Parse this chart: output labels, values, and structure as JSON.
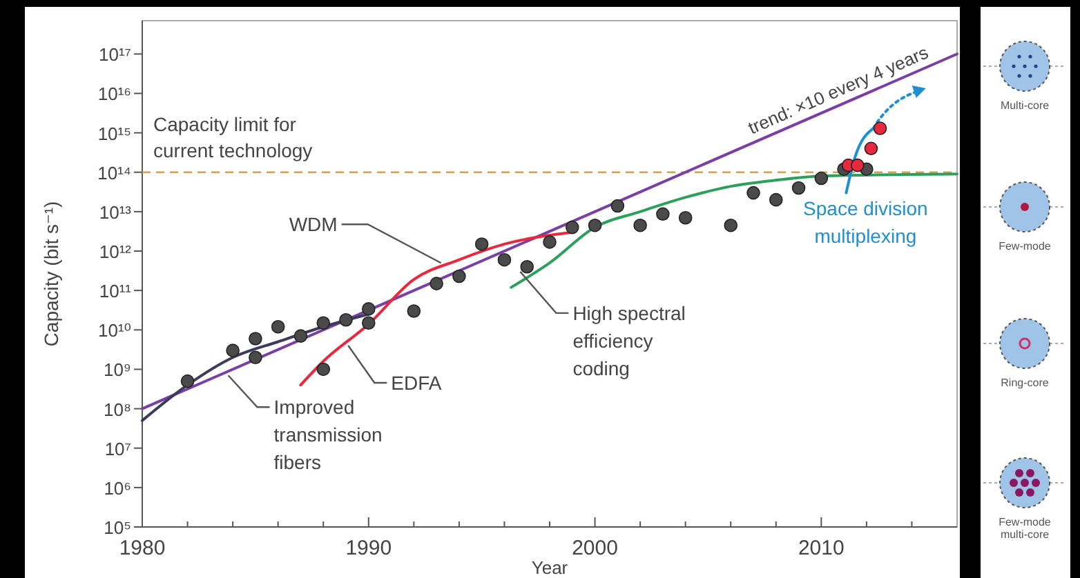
{
  "chart_data": {
    "type": "line",
    "xlabel": "Year",
    "ylabel": "Capacity (bit s⁻¹)",
    "log": true,
    "xlim": [
      1980,
      2016
    ],
    "ylim": [
      100000.0,
      7e+17
    ],
    "xticks": [
      1980,
      {
        "value": 1982,
        "label": null
      },
      {
        "value": 1984,
        "label": null
      },
      {
        "value": 1986,
        "label": null
      },
      {
        "value": 1988,
        "label": null
      },
      1990,
      {
        "value": 1992,
        "label": null
      },
      {
        "value": 1994,
        "label": null
      },
      {
        "value": 1996,
        "label": null
      },
      {
        "value": 1998,
        "label": null
      },
      2000,
      {
        "value": 2002,
        "label": null
      },
      {
        "value": 2004,
        "label": null
      },
      {
        "value": 2006,
        "label": null
      },
      {
        "value": 2008,
        "label": null
      },
      2010,
      {
        "value": 2012,
        "label": null
      },
      {
        "value": 2014,
        "label": null
      }
    ],
    "yticks": [
      {
        "value": 100000.0,
        "label": "10⁵"
      },
      {
        "value": 1000000.0,
        "label": "10⁶"
      },
      {
        "value": 10000000.0,
        "label": "10⁷"
      },
      {
        "value": 100000000.0,
        "label": "10⁸"
      },
      {
        "value": 1000000000.0,
        "label": "10⁹"
      },
      {
        "value": 10000000000.0,
        "label": "10¹⁰"
      },
      {
        "value": 100000000000.0,
        "label": "10¹¹"
      },
      {
        "value": 1000000000000.0,
        "label": "10¹²"
      },
      {
        "value": 10000000000000.0,
        "label": "10¹³"
      },
      {
        "value": 100000000000000.0,
        "label": "10¹⁴"
      },
      {
        "value": 1000000000000000.0,
        "label": "10¹⁵"
      },
      {
        "value": 1e+16,
        "label": "10¹⁶"
      },
      {
        "value": 1e+17,
        "label": "10¹⁷"
      }
    ],
    "grid": false,
    "ref_lines": [
      {
        "axis": "y",
        "value": 100000000000000.0,
        "label": "Capacity limit for current technology",
        "color": "#c9a45a",
        "line_style": "dashed"
      }
    ],
    "series": [
      {
        "color": "#7a3fa5",
        "x": [
          1980,
          2016
        ],
        "values": [
          100000000.0,
          1e+17
        ]
      },
      {
        "color": "#3d3a5c",
        "x": [
          1980,
          1982,
          1984,
          1986,
          1988,
          1990
        ],
        "values": [
          50000000.0,
          400000000.0,
          2000000000.0,
          5000000000.0,
          12000000000.0,
          25000000000.0
        ]
      },
      {
        "color": "#e8283c",
        "x": [
          1987,
          1988,
          1990,
          1992,
          1994,
          1996,
          1999
        ],
        "values": [
          400000000.0,
          1600000000.0,
          14000000000.0,
          190000000000.0,
          600000000000.0,
          1500000000000.0,
          3000000000000.0
        ]
      },
      {
        "color": "#2ca05a",
        "x": [
          1996.3,
          1998,
          2000,
          2002,
          2004,
          2006,
          2008,
          2010,
          2016
        ],
        "values": [
          120000000000.0,
          500000000000.0,
          4000000000000.0,
          10000000000000.0,
          23000000000000.0,
          44000000000000.0,
          63000000000000.0,
          80000000000000.0,
          90000000000000.0
        ]
      },
      {
        "name": "Space division multiplexing",
        "color": "#1e8fd0",
        "x": [
          2011.1,
          2011.5,
          2012.3
        ],
        "values": [
          30000000000000.0,
          250000000000000.0,
          1300000000000000.0
        ]
      },
      {
        "type": "scatter",
        "color": "#4a4a4a",
        "marker": "circle",
        "x": [
          1982,
          1984,
          1985,
          1985,
          1986,
          1987,
          1988,
          1988,
          1989,
          1990,
          1990,
          1992,
          1993,
          1994,
          1995,
          1996,
          1997,
          1998,
          1999,
          2000,
          2001,
          2002,
          2003,
          2004,
          2006,
          2007,
          2008,
          2009,
          2010,
          2011,
          2012
        ],
        "values": [
          500000000.0,
          3000000000.0,
          6000000000.0,
          2000000000.0,
          12000000000.0,
          7000000000.0,
          15000000000.0,
          1000000000.0,
          18000000000.0,
          34000000000.0,
          15000000000.0,
          30000000000.0,
          150000000000.0,
          230000000000.0,
          1500000000000.0,
          600000000000.0,
          400000000000.0,
          1700000000000.0,
          4000000000000.0,
          4500000000000.0,
          14000000000000.0,
          4500000000000.0,
          8700000000000.0,
          7000000000000.0,
          4500000000000.0,
          30000000000000.0,
          20000000000000.0,
          40000000000000.0,
          70000000000000.0,
          120000000000000.0,
          120000000000000.0
        ]
      },
      {
        "type": "scatter",
        "color": "#e8283c",
        "marker": "circle",
        "x": [
          2011.2,
          2011.6,
          2012.2,
          2012.6
        ],
        "values": [
          150000000000000.0,
          150000000000000.0,
          400000000000000.0,
          1300000000000000.0
        ]
      }
    ],
    "annotations": [
      {
        "text": "trend: ×10 every 4 years",
        "x": 2011,
        "y": 5600000000000000.0
      },
      {
        "text": "WDM",
        "x": 1993.2,
        "y": 500000000000.0
      },
      {
        "text": "EDFA",
        "x": 1989.1,
        "y": 4000000000.0
      },
      {
        "text": "Improved transmission fibers",
        "x": 1983.8,
        "y": 700000000.0
      },
      {
        "text": "High spectral efficiency coding",
        "x": 1996.7,
        "y": 300000000000.0
      },
      "Multi-core",
      "Few-mode",
      "Ring-core",
      "Few-mode multi-core"
    ]
  }
}
